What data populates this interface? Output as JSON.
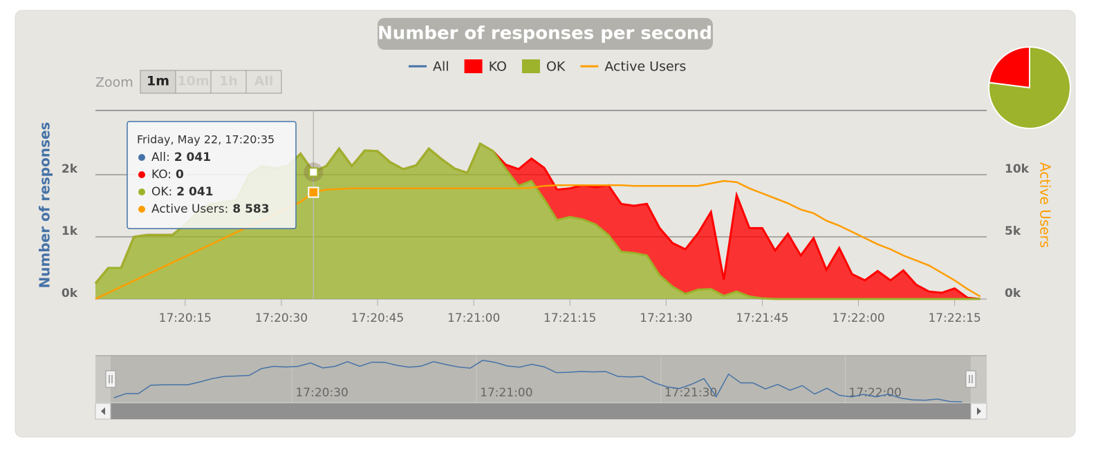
{
  "chart_data": [
    {
      "type": "area",
      "title": "Number of responses per second",
      "y_label": "Number of responses",
      "y2_label": "Active Users",
      "legend": "top",
      "stacked": true,
      "grid": true,
      "x": [
        "17:20:01",
        "17:20:03",
        "17:20:05",
        "17:20:07",
        "17:20:09",
        "17:20:11",
        "17:20:13",
        "17:20:15",
        "17:20:17",
        "17:20:19",
        "17:20:21",
        "17:20:23",
        "17:20:25",
        "17:20:27",
        "17:20:29",
        "17:20:31",
        "17:20:33",
        "17:20:35",
        "17:20:37",
        "17:20:39",
        "17:20:41",
        "17:20:43",
        "17:20:45",
        "17:20:47",
        "17:20:49",
        "17:20:51",
        "17:20:53",
        "17:20:55",
        "17:20:57",
        "17:20:59",
        "17:21:01",
        "17:21:03",
        "17:21:05",
        "17:21:07",
        "17:21:09",
        "17:21:11",
        "17:21:13",
        "17:21:15",
        "17:21:17",
        "17:21:19",
        "17:21:21",
        "17:21:23",
        "17:21:25",
        "17:21:27",
        "17:21:29",
        "17:21:31",
        "17:21:33",
        "17:21:35",
        "17:21:37",
        "17:21:39",
        "17:21:41",
        "17:21:43",
        "17:21:45",
        "17:21:47",
        "17:21:49",
        "17:21:51",
        "17:21:53",
        "17:21:55",
        "17:21:57",
        "17:21:59",
        "17:22:01",
        "17:22:03",
        "17:22:05",
        "17:22:07",
        "17:22:09",
        "17:22:11",
        "17:22:13",
        "17:22:15",
        "17:22:17",
        "17:22:19"
      ],
      "xlim": [
        "17:20:01",
        "17:22:20"
      ],
      "xticks": [
        "17:20:15",
        "17:20:30",
        "17:20:45",
        "17:21:00",
        "17:21:15",
        "17:21:30",
        "17:21:45",
        "17:22:00",
        "17:22:15"
      ],
      "ylim": [
        0,
        3000
      ],
      "yticks": [
        {
          "value": 0,
          "label": "0k"
        },
        {
          "value": 1000,
          "label": "1k"
        },
        {
          "value": 2000,
          "label": "2k"
        }
      ],
      "y2lim": [
        0,
        15000
      ],
      "y2ticks": [
        {
          "value": 0,
          "label": "0k"
        },
        {
          "value": 5000,
          "label": "5k"
        },
        {
          "value": 10000,
          "label": "10k"
        }
      ],
      "series": [
        {
          "name": "All",
          "type": "line",
          "color": "#4572a7",
          "values": [
            250,
            500,
            500,
            1000,
            1030,
            1030,
            1030,
            1200,
            1400,
            1530,
            1560,
            1590,
            2000,
            2140,
            2100,
            2140,
            2340,
            2041,
            2140,
            2420,
            2140,
            2390,
            2380,
            2200,
            2090,
            2150,
            2420,
            2250,
            2100,
            2030,
            2500,
            2380,
            2160,
            2090,
            2260,
            2110,
            1760,
            1780,
            1830,
            1800,
            1830,
            1530,
            1500,
            1530,
            1140,
            900,
            800,
            1060,
            1400,
            310,
            1670,
            1140,
            1140,
            780,
            1050,
            700,
            980,
            470,
            820,
            400,
            300,
            450,
            300,
            460,
            230,
            120,
            100,
            170,
            20,
            0
          ]
        },
        {
          "name": "KO",
          "type": "area",
          "color": "#ff0000",
          "values": [
            0,
            0,
            0,
            0,
            0,
            0,
            0,
            0,
            0,
            0,
            0,
            0,
            0,
            0,
            0,
            0,
            0,
            0,
            0,
            0,
            0,
            0,
            0,
            0,
            0,
            0,
            0,
            0,
            0,
            0,
            0,
            0,
            70,
            270,
            360,
            510,
            490,
            460,
            550,
            600,
            800,
            770,
            760,
            830,
            760,
            700,
            720,
            910,
            1240,
            260,
            1550,
            1100,
            1130,
            780,
            1050,
            700,
            980,
            470,
            820,
            400,
            300,
            450,
            300,
            460,
            230,
            120,
            100,
            170,
            20,
            0
          ]
        },
        {
          "name": "OK",
          "type": "area",
          "color": "#9cb32b",
          "values": [
            250,
            500,
            500,
            1000,
            1030,
            1030,
            1030,
            1200,
            1400,
            1530,
            1560,
            1590,
            2000,
            2140,
            2100,
            2140,
            2340,
            2041,
            2140,
            2420,
            2140,
            2390,
            2380,
            2200,
            2090,
            2150,
            2420,
            2250,
            2100,
            2030,
            2500,
            2380,
            2090,
            1820,
            1900,
            1600,
            1270,
            1320,
            1280,
            1200,
            1030,
            760,
            740,
            700,
            380,
            200,
            80,
            150,
            160,
            50,
            120,
            40,
            10,
            0,
            0,
            0,
            0,
            0,
            0,
            0,
            0,
            0,
            0,
            0,
            0,
            0,
            0,
            0,
            0,
            0
          ]
        },
        {
          "name": "Active Users",
          "type": "line",
          "axis": "y2",
          "color": "#ff9d00",
          "values": [
            0,
            490,
            980,
            1460,
            1950,
            2440,
            2930,
            3410,
            3900,
            4390,
            4880,
            5370,
            5850,
            6340,
            6830,
            7320,
            7810,
            8583,
            8800,
            8850,
            8900,
            8900,
            8900,
            8900,
            8900,
            8900,
            8900,
            8900,
            8900,
            8900,
            8900,
            8900,
            8900,
            8900,
            8950,
            9100,
            9150,
            9150,
            9150,
            9150,
            9150,
            9150,
            9100,
            9100,
            9100,
            9100,
            9100,
            9100,
            9300,
            9500,
            9400,
            8900,
            8500,
            8100,
            7700,
            7200,
            6900,
            6300,
            5900,
            5400,
            4900,
            4400,
            4000,
            3500,
            3100,
            2700,
            2100,
            1500,
            800,
            200
          ]
        }
      ],
      "zoom": {
        "label": "Zoom",
        "buttons": [
          "1m",
          "10m",
          "1h",
          "All"
        ]
      },
      "navigator": {
        "xlim": [
          "17:19:58",
          "17:22:23"
        ],
        "ylim": [
          0,
          2700
        ],
        "xticks": [
          "17:20:30",
          "17:21:00",
          "17:21:30",
          "17:22:00"
        ]
      },
      "tooltip": {
        "title": "Friday, May 22, 17:20:35",
        "rows": [
          {
            "name": "All:",
            "value": 2041,
            "value_label": "2 041"
          },
          {
            "name": "KO:",
            "value": 0
          },
          {
            "name": "OK:",
            "value": 2041,
            "value_label": "2 041"
          },
          {
            "name": "Active Users:",
            "value": 8583,
            "value_label": "8 583"
          }
        ]
      }
    },
    {
      "type": "pie",
      "categories": [
        "KO",
        "OK"
      ],
      "values": [
        23,
        77
      ],
      "colors": [
        "#ff0000",
        "#9cb32b"
      ]
    }
  ]
}
